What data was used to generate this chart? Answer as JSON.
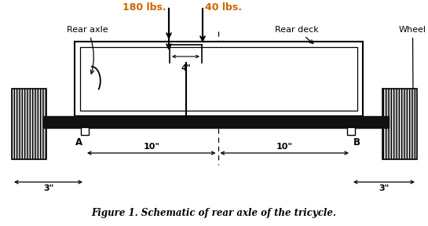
{
  "title": "Figure 1. Schematic of rear axle of the tricycle.",
  "load1_label": "180 lbs.",
  "load2_label": "40 lbs.",
  "load_color": "#cc6600",
  "label_rear_axle": "Rear axle",
  "label_rear_deck": "Rear deck",
  "label_wheel": "Wheel",
  "label_A": "A",
  "label_B": "B",
  "dim_4": "4\"",
  "dim_10L": "10\"",
  "dim_10R": "10\"",
  "dim_3L": "3\"",
  "dim_3R": "3\"",
  "bg_color": "#ffffff",
  "axle_color": "#111111",
  "text_color": "#000000",
  "title_fontsize": 8.5,
  "label_fontsize": 8,
  "load_fontsize": 9
}
